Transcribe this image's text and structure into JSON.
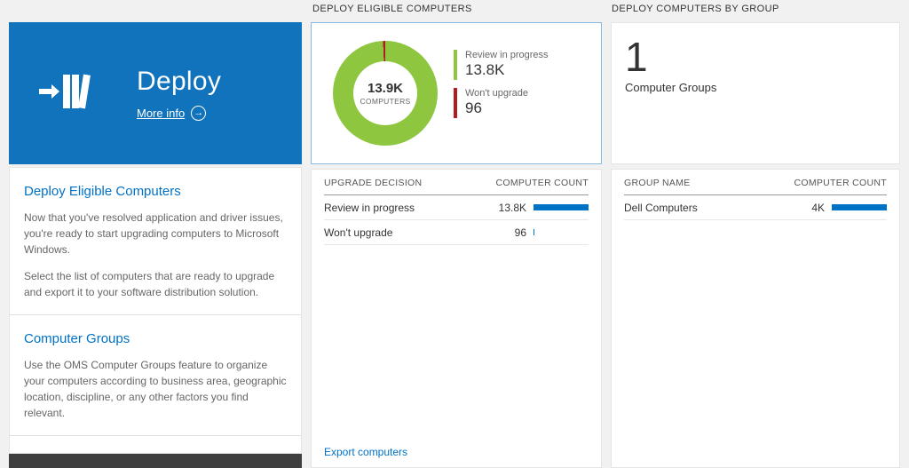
{
  "colors": {
    "tile_blue": "#1173bc",
    "accent_blue": "#0072c6",
    "bar_blue": "#0072c6",
    "green": "#8ec63f",
    "red": "#b01c22",
    "footer_dark": "#3f3f3f"
  },
  "left_panel": {
    "tile": {
      "title": "Deploy",
      "more_info_label": "More info",
      "arrow_glyph": "→"
    },
    "sections": [
      {
        "heading": "Deploy Eligible Computers",
        "paragraphs": [
          "Now that you've resolved application and driver issues, you're ready to start upgrading computers to Microsoft Windows.",
          "Select the list of computers that are ready to upgrade and export it to your software distribution solution."
        ]
      },
      {
        "heading": "Computer Groups",
        "paragraphs": [
          "Use the OMS Computer Groups feature to organize your computers according to business area, geographic location, discipline, or any other factors you find relevant."
        ]
      }
    ]
  },
  "middle_panel": {
    "header": "DEPLOY ELIGIBLE COMPUTERS",
    "chart_data": {
      "type": "pie",
      "subtype": "donut",
      "center_value": "13.9K",
      "center_label": "COMPUTERS",
      "segments": [
        {
          "label": "Review in progress",
          "value": 13800,
          "display": "13.8K",
          "color": "#8ec63f"
        },
        {
          "label": "Won't upgrade",
          "value": 96,
          "display": "96",
          "color": "#b01c22"
        }
      ]
    },
    "table": {
      "columns": [
        "UPGRADE DECISION",
        "COMPUTER COUNT"
      ],
      "rows": [
        {
          "label": "Review in progress",
          "value": "13.8K",
          "bar_pct": 100
        },
        {
          "label": "Won't upgrade",
          "value": "96",
          "bar_pct": 2
        }
      ]
    },
    "export_link": "Export computers"
  },
  "right_panel": {
    "header": "DEPLOY COMPUTERS BY GROUP",
    "summary": {
      "count": "1",
      "label": "Computer Groups"
    },
    "table": {
      "columns": [
        "GROUP NAME",
        "COMPUTER COUNT"
      ],
      "rows": [
        {
          "label": "Dell Computers",
          "value": "4K",
          "bar_pct": 100
        }
      ]
    }
  }
}
